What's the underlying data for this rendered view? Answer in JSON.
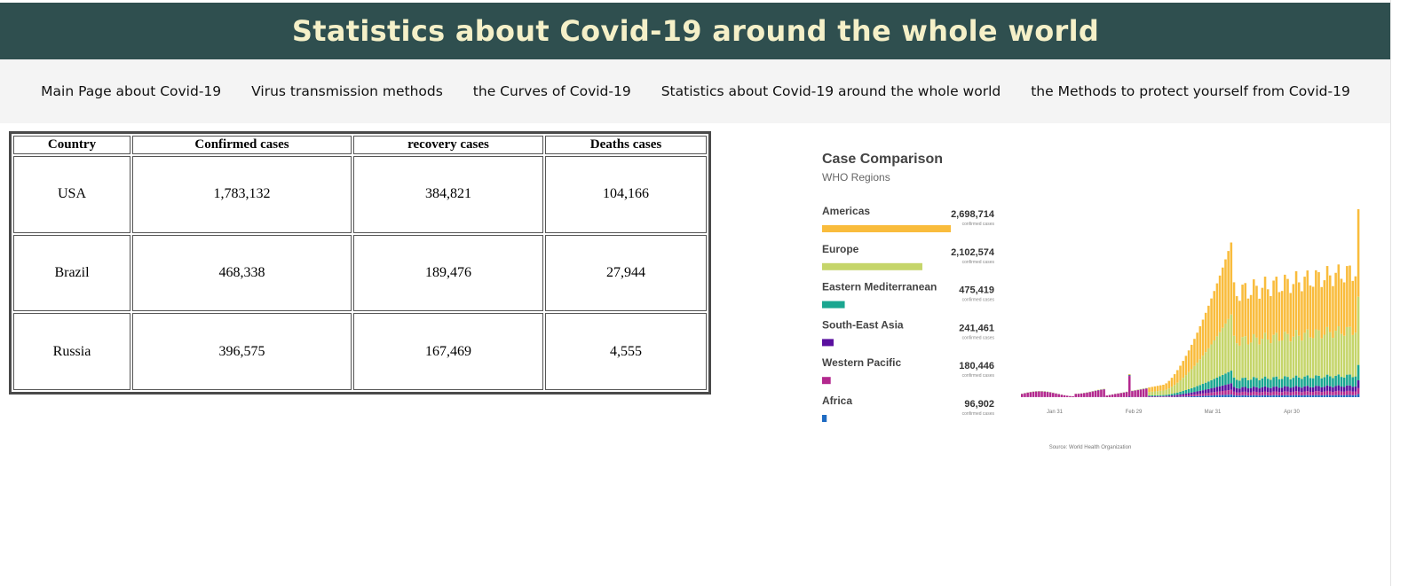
{
  "header": {
    "title": "Statistics about Covid-19 around the whole world"
  },
  "nav": {
    "items": [
      {
        "label": "Main Page about Covid-19"
      },
      {
        "label": "Virus transmission methods"
      },
      {
        "label": "the Curves of Covid-19"
      },
      {
        "label": "Statistics about Covid-19 around the whole world"
      },
      {
        "label": "the Methods to protect yourself from Covid-19"
      }
    ]
  },
  "table": {
    "headers": [
      "Country",
      "Confirmed cases",
      "recovery cases",
      "Deaths cases"
    ],
    "rows": [
      [
        "USA",
        "1,783,132",
        "384,821",
        "104,166"
      ],
      [
        "Brazil",
        "468,338",
        "189,476",
        "27,944"
      ],
      [
        "Russia",
        "396,575",
        "167,469",
        "4,555"
      ]
    ]
  },
  "colors": {
    "header_bg": "#2f4f4f",
    "header_text": "#f5f0c8",
    "nav_bg": "#f4f4f4"
  },
  "chart_data": {
    "type": "bar",
    "title": "Case Comparison",
    "subtitle": "WHO Regions",
    "value_caption": "confirmed cases",
    "source": "Source: World Health Organization",
    "categories": [
      "Americas",
      "Europe",
      "Eastern Mediterranean",
      "South-East Asia",
      "Western Pacific",
      "Africa"
    ],
    "values": [
      2698714,
      2102574,
      475419,
      241461,
      180446,
      96902
    ],
    "value_labels": [
      "2,698,714",
      "2,102,574",
      "475,419",
      "241,461",
      "180,446",
      "96,902"
    ],
    "colors": [
      "#f9bc3c",
      "#c5d56a",
      "#1aa690",
      "#5a109f",
      "#b3288e",
      "#1f6bc2"
    ],
    "timeline": {
      "type": "area",
      "x_ticks": [
        "Jan 31",
        "Feb 29",
        "Mar 31",
        "Apr 30"
      ],
      "stack_order": [
        "Africa",
        "Western Pacific",
        "South-East Asia",
        "Eastern Mediterranean",
        "Europe",
        "Americas"
      ]
    }
  }
}
